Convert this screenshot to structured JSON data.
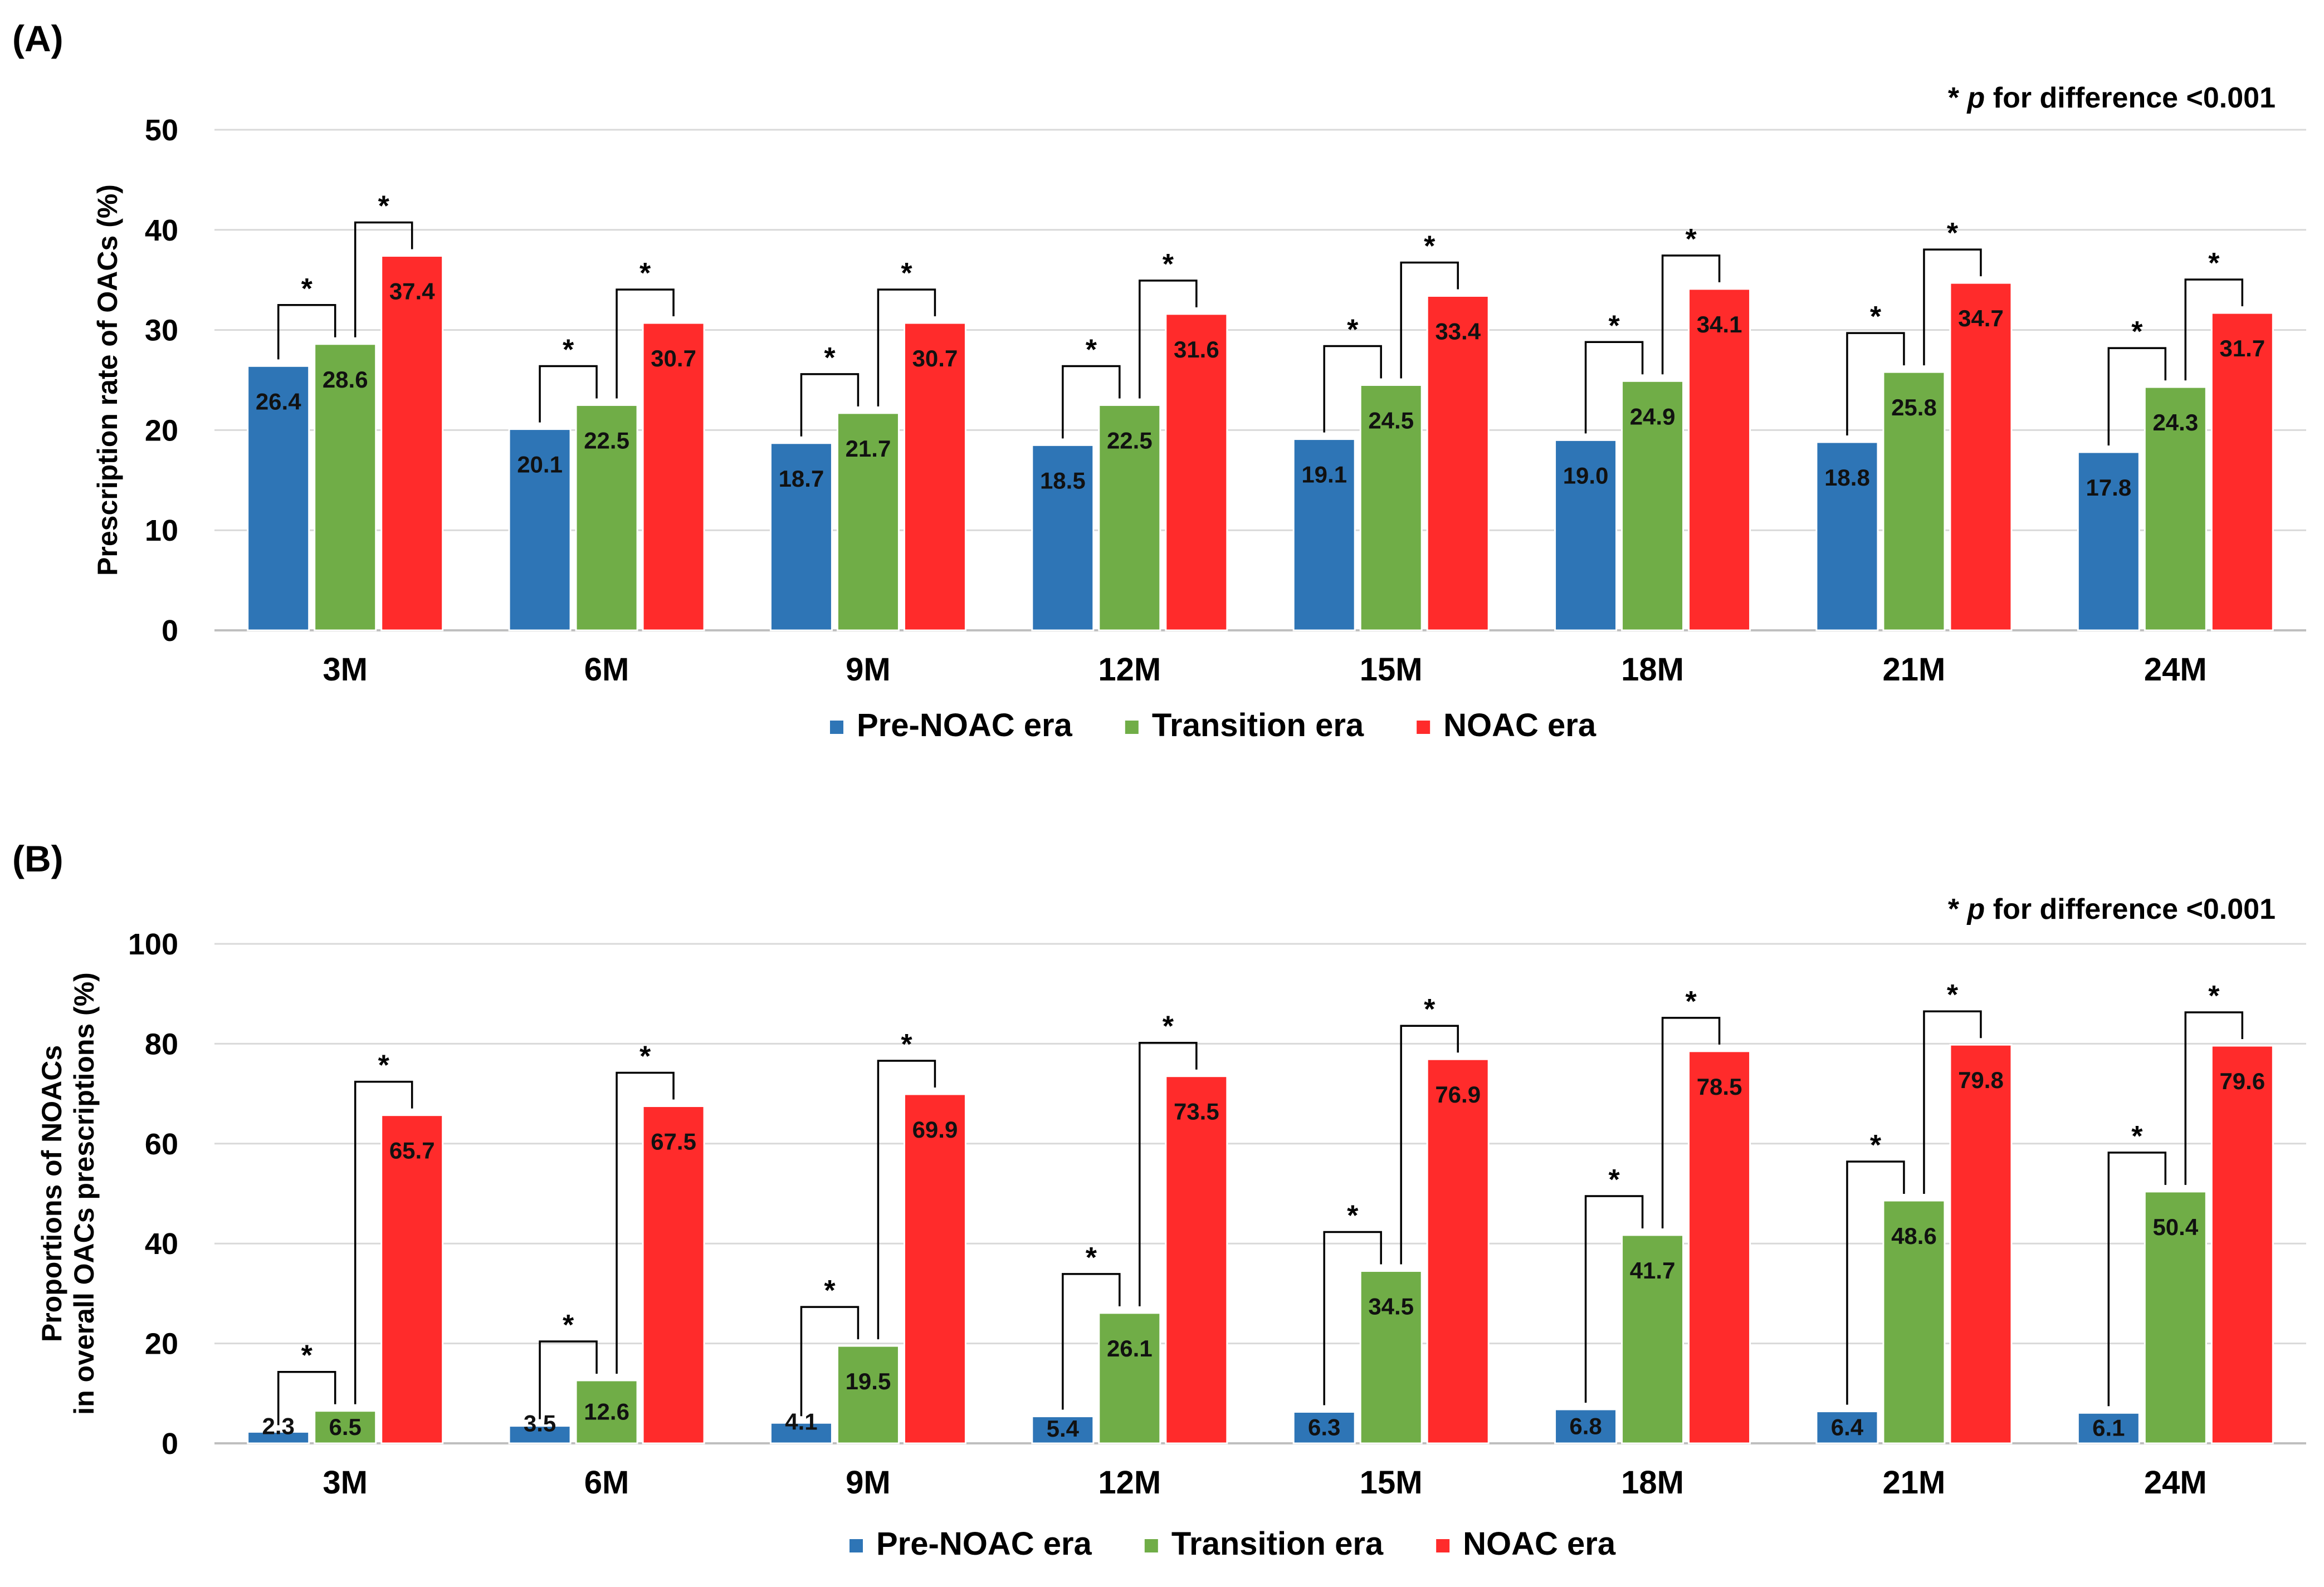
{
  "colors": {
    "pre": "#2e75b6",
    "transition": "#70ad47",
    "noac": "#ff2b2b"
  },
  "chart_data": [
    {
      "type": "bar",
      "panel": "(A)",
      "note_prefix": "* ",
      "note_italic": "p",
      "note_suffix": " for difference <0.001",
      "ylabel": "Prescription rate of OACs (%)",
      "ylim": [
        0,
        50
      ],
      "yticks": [
        0,
        10,
        20,
        30,
        40,
        50
      ],
      "grid": true,
      "legend_position": "bottom",
      "categories": [
        "3M",
        "6M",
        "9M",
        "12M",
        "15M",
        "18M",
        "21M",
        "24M"
      ],
      "series": [
        {
          "name": "Pre-NOAC era",
          "values": [
            26.4,
            20.1,
            18.7,
            18.5,
            19.1,
            19.0,
            18.8,
            17.8
          ]
        },
        {
          "name": "Transition era",
          "values": [
            28.6,
            22.5,
            21.7,
            22.5,
            24.5,
            24.9,
            25.8,
            24.3
          ]
        },
        {
          "name": "NOAC era",
          "values": [
            37.4,
            30.7,
            30.7,
            31.6,
            33.4,
            34.1,
            34.7,
            31.7
          ]
        }
      ],
      "value_labels": [
        [
          "26.4",
          "20.1",
          "18.7",
          "18.5",
          "19.1",
          "19.0",
          "18.8",
          "17.8"
        ],
        [
          "28.6",
          "22.5",
          "21.7",
          "22.5",
          "24.5",
          "24.9",
          "25.8",
          "24.3"
        ],
        [
          "37.4",
          "30.7",
          "30.7",
          "31.6",
          "33.4",
          "34.1",
          "34.7",
          "31.7"
        ]
      ],
      "significance_marker": "*"
    },
    {
      "type": "bar",
      "panel": "(B)",
      "note_prefix": "* ",
      "note_italic": "p",
      "note_suffix": " for difference <0.001",
      "ylabel_lines": [
        "Proportions of NOACs",
        "in overall OACs prescriptions (%)"
      ],
      "ylim": [
        0,
        100
      ],
      "yticks": [
        0,
        20,
        40,
        60,
        80,
        100
      ],
      "grid": true,
      "legend_position": "bottom",
      "categories": [
        "3M",
        "6M",
        "9M",
        "12M",
        "15M",
        "18M",
        "21M",
        "24M"
      ],
      "series": [
        {
          "name": "Pre-NOAC era",
          "values": [
            2.3,
            3.5,
            4.1,
            5.4,
            6.3,
            6.8,
            6.4,
            6.1
          ]
        },
        {
          "name": "Transition era",
          "values": [
            6.5,
            12.6,
            19.5,
            26.1,
            34.5,
            41.7,
            48.6,
            50.4
          ]
        },
        {
          "name": "NOAC era",
          "values": [
            65.7,
            67.5,
            69.9,
            73.5,
            76.9,
            78.5,
            79.8,
            79.6
          ]
        }
      ],
      "value_labels": [
        [
          "2.3",
          "3.5",
          "4.1",
          "5.4",
          "6.3",
          "6.8",
          "6.4",
          "6.1"
        ],
        [
          "6.5",
          "12.6",
          "19.5",
          "26.1",
          "34.5",
          "41.7",
          "48.6",
          "50.4"
        ],
        [
          "65.7",
          "67.5",
          "69.9",
          "73.5",
          "76.9",
          "78.5",
          "79.8",
          "79.6"
        ]
      ],
      "significance_marker": "*"
    }
  ]
}
